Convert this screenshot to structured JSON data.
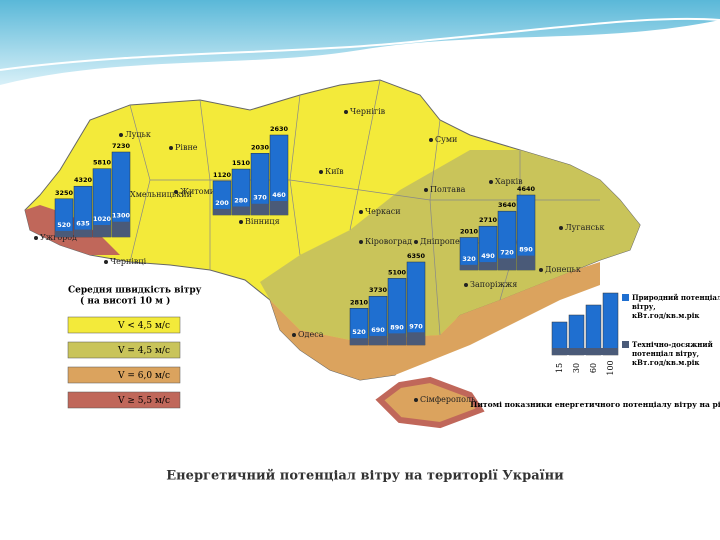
{
  "title": "Енергетичний потенціал вітру на території України",
  "zone_legend": {
    "title": "Середня швидкість вітру",
    "subtitle": "( на висоті 10 м )",
    "items": [
      {
        "label": "V < 4,5 м/с",
        "color": "#f3ea3a"
      },
      {
        "label": "V = 4,5 м/с",
        "color": "#c9c45a"
      },
      {
        "label": "V = 6,0 м/с",
        "color": "#dba35e"
      },
      {
        "label": "V ≥ 5,5 м/с",
        "color": "#c0675a"
      }
    ]
  },
  "bar_legend": {
    "items": [
      {
        "label": "Природний потенціал вітру, кВт.год/кв.м.рік",
        "color": "#1f6fd0"
      },
      {
        "label": "Технічно-досяжний потенціал вітру, кВт.год/кв.м.рік",
        "color": "#4a5a78"
      }
    ],
    "heights": [
      15,
      30,
      60,
      100
    ],
    "caption": "Питомі показники енергетичного потенціалу вітру на різній висоті"
  },
  "cities": [
    "Луцьк",
    "Рівне",
    "Житомир",
    "Хмельницький",
    "Вінниця",
    "Київ",
    "Чернігів",
    "Суми",
    "Харків",
    "Полтава",
    "Черкаси",
    "Кіровоград",
    "Дніпропетровськ",
    "Запоріжжя",
    "Донецьк",
    "Луганськ",
    "Одеса",
    "Ужгород",
    "Чернівці",
    "Сімферополь"
  ],
  "charts": [
    {
      "natural": [
        3250,
        4320,
        5810,
        7230
      ],
      "technical": [
        520,
        635,
        1020,
        1300
      ]
    },
    {
      "natural": [
        1120,
        1510,
        2030,
        2630
      ],
      "technical": [
        200,
        280,
        370,
        460
      ]
    },
    {
      "natural": [
        2010,
        2710,
        3640,
        4640
      ],
      "technical": [
        320,
        490,
        720,
        890
      ]
    },
    {
      "natural": [
        2810,
        3730,
        5100,
        6350
      ],
      "technical": [
        520,
        690,
        890,
        970
      ]
    }
  ]
}
